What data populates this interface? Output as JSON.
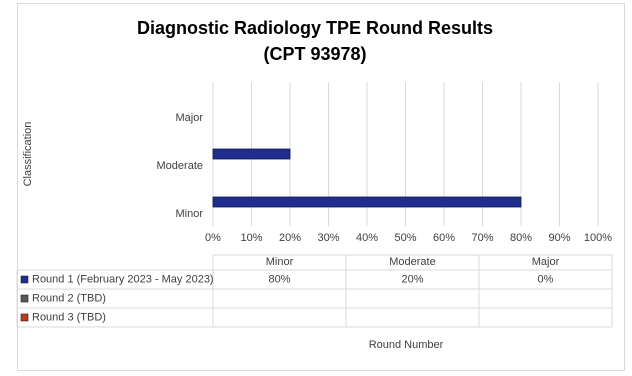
{
  "chart_data": {
    "type": "bar",
    "orientation": "horizontal",
    "title": "Diagnostic Radiology TPE Round Results",
    "subtitle": "(CPT 93978)",
    "y_label": "Classification",
    "x_label": "Round Number",
    "categories": [
      "Minor",
      "Moderate",
      "Major"
    ],
    "series": [
      {
        "name": "Round 1 (February 2023 - May 2023)",
        "color": "#1f2d8c",
        "values": [
          80,
          20,
          0
        ],
        "value_labels": [
          "80%",
          "20%",
          "0%"
        ]
      },
      {
        "name": "Round 2 (TBD)",
        "color": "#595959",
        "values": [
          null,
          null,
          null
        ]
      },
      {
        "name": "Round 3 (TBD)",
        "color": "#c0391b",
        "values": [
          null,
          null,
          null
        ]
      }
    ],
    "xlim": [
      0,
      100
    ],
    "xticks": [
      {
        "value": 0,
        "label": "0%"
      },
      {
        "value": 10,
        "label": "10%"
      },
      {
        "value": 20,
        "label": "20%"
      },
      {
        "value": 30,
        "label": "30%"
      },
      {
        "value": 40,
        "label": "40%"
      },
      {
        "value": 50,
        "label": "50%"
      },
      {
        "value": 60,
        "label": "60%"
      },
      {
        "value": 70,
        "label": "70%"
      },
      {
        "value": 80,
        "label": "80%"
      },
      {
        "value": 90,
        "label": "90%"
      },
      {
        "value": 100,
        "label": "100%"
      }
    ],
    "grid": true
  }
}
